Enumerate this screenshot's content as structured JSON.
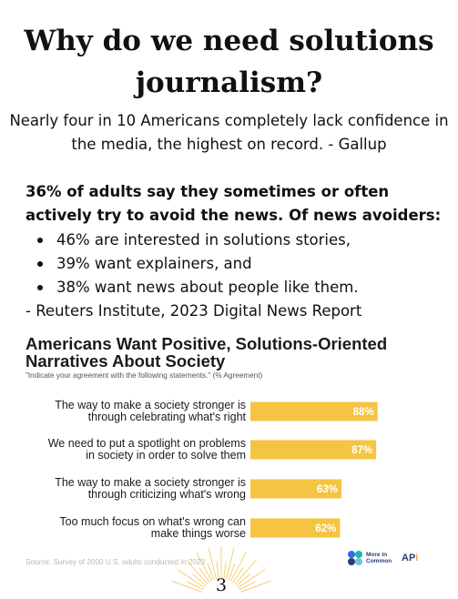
{
  "page": {
    "title": "Why do we need solutions journalism?",
    "intro": "Nearly four in 10 Americans completely lack confidence in the media, the highest on record. - Gallup",
    "stat_lead": "36% of adults say they sometimes or often actively try to avoid the news. Of news avoiders:",
    "stat_items": [
      "46% are interested in solutions stories,",
      "39% want explainers, and",
      "38% want news about people like them."
    ],
    "stat_source": "- Reuters Institute, 2023 Digital News Report",
    "page_number": "3"
  },
  "chart": {
    "title": "Americans Want Positive, Solutions-Oriented Narratives About Society",
    "subtitle": "\"Indicate your agreement with the following statements.\" (% Agreement)",
    "source": "Source: Survey of 2000 U.S. adults conducted in 2023",
    "bar_color": "#f6c443",
    "label_color": "#ffffff"
  },
  "chart_data": {
    "type": "bar",
    "orientation": "horizontal",
    "categories": [
      [
        "The way to make a society stronger is",
        "through celebrating what's right"
      ],
      [
        "We need to put a spotlight on problems",
        "in society in order to solve them"
      ],
      [
        "The way to make a society stronger is",
        "through criticizing what's wrong"
      ],
      [
        "Too much focus on what's wrong can",
        "make things worse"
      ]
    ],
    "values": [
      88,
      87,
      63,
      62
    ],
    "value_labels": [
      "88%",
      "87%",
      "63%",
      "62%"
    ],
    "title": "Americans Want Positive, Solutions-Oriented Narratives About Society",
    "xlim": [
      0,
      100
    ]
  },
  "logos": {
    "more_in_common": [
      "More in",
      "Common"
    ],
    "api_text": "AP",
    "api_slash": "i",
    "blob_colors": [
      "#2e6be6",
      "#20b6b0",
      "#2a3d7a",
      "#6fc3e8"
    ]
  }
}
